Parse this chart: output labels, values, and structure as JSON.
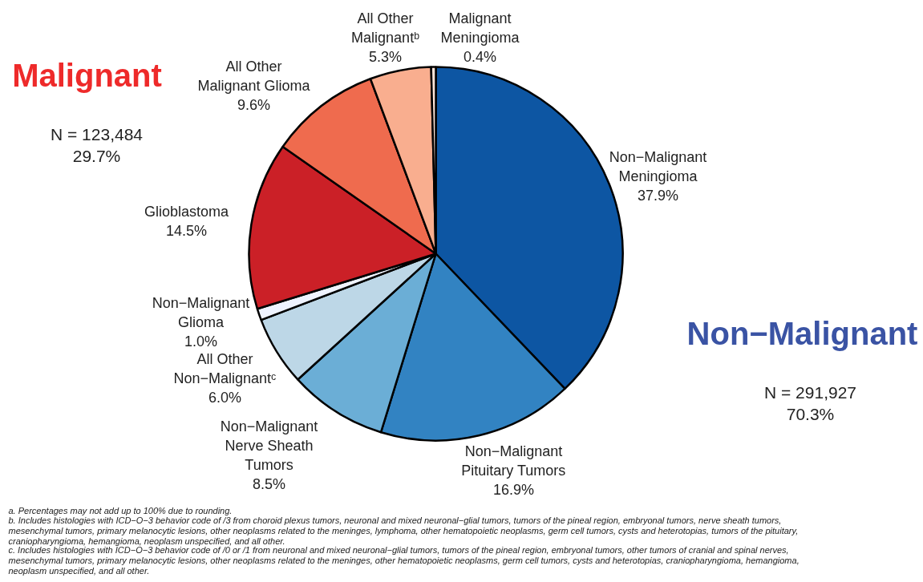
{
  "chart_data": {
    "type": "pie",
    "categories": [
      "Non−Malignant\nMeningioma",
      "Non−Malignant\nPituitary Tumors",
      "Non−Malignant\nNerve Sheath\nTumors",
      "All Other\nNon−Malignantᶜ",
      "Non−Malignant\nGlioma",
      "Glioblastoma",
      "All Other\nMalignant Glioma",
      "All Other\nMalignantᵇ",
      "Malignant\nMeningioma"
    ],
    "values": [
      37.9,
      16.9,
      8.5,
      6.0,
      1.0,
      14.5,
      9.6,
      5.3,
      0.4
    ],
    "colors": [
      "#0d56a3",
      "#3283c2",
      "#6baed6",
      "#bdd7e7",
      "#eff3ff",
      "#cb2027",
      "#ef6b4e",
      "#f9ae8f",
      "#fee5d9"
    ],
    "value_labels": [
      "37.9%",
      "16.9%",
      "8.5%",
      "6.0%",
      "1.0%",
      "14.5%",
      "9.6%",
      "5.3%",
      "0.4%"
    ],
    "annotations": [
      "Malignant",
      "N = 123,484\n29.7%",
      "Non−Malignant",
      "N = 291,927\n70.3%",
      "a. Percentages may not add up to 100% due to rounding.",
      "b. Includes histologies with ICD−O−3 behavior code of /3 from choroid plexus tumors, neuronal and mixed neuronal−glial tumors, tumors of the pineal region, embryonal tumors, nerve sheath tumors, mesenchymal tumors, primary melanocytic lesions, other neoplasms related to the meninges, lymphoma, other hematopoietic neoplasms, germ cell tumors, cysts and heterotopias, tumors of the pituitary, craniopharyngioma, hemangioma, neoplasm unspecified, and all other.",
      "c. Includes histologies with ICD−O−3 behavior code of /0 or /1 from neuronal and mixed neuronal−glial tumors, tumors of the pineal region, embryonal tumors, other tumors of cranial and spinal nerves, mesenchymal tumors, primary melanocytic lesions, other neoplasms related to the meninges, other hematopoietic neoplasms, germ cell tumors, cysts and heterotopias, craniopharyngioma, hemangioma, neoplasm unspecified, and all other."
    ]
  }
}
